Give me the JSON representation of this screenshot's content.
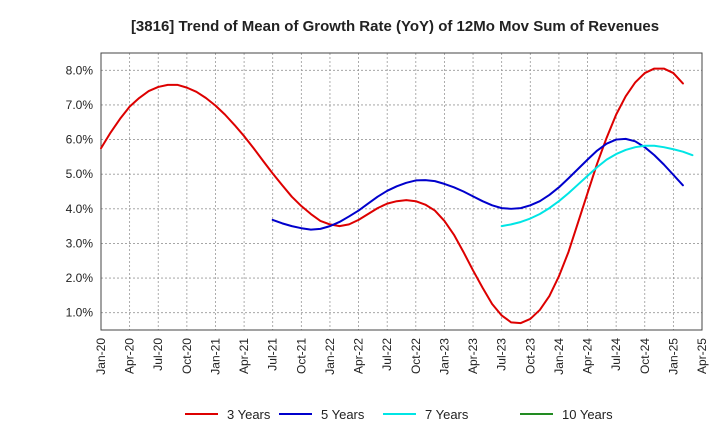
{
  "chart_data": {
    "type": "line",
    "title": "[3816]  Trend of Mean of Growth Rate (YoY) of 12Mo Mov Sum of Revenues",
    "xlabel": "",
    "ylabel": "",
    "x_range": [
      "Jan-20",
      "Apr-25"
    ],
    "ylim": [
      0.5,
      8.5
    ],
    "yticks": [
      1.0,
      2.0,
      3.0,
      4.0,
      5.0,
      6.0,
      7.0,
      8.0
    ],
    "ytick_labels": [
      "1.0%",
      "2.0%",
      "3.0%",
      "4.0%",
      "5.0%",
      "6.0%",
      "7.0%",
      "8.0%"
    ],
    "xtick_labels": [
      "Jan-20",
      "Apr-20",
      "Jul-20",
      "Oct-20",
      "Jan-21",
      "Apr-21",
      "Jul-21",
      "Oct-21",
      "Jan-22",
      "Apr-22",
      "Jul-22",
      "Oct-22",
      "Jan-23",
      "Apr-23",
      "Jul-23",
      "Oct-23",
      "Jan-24",
      "Apr-24",
      "Jul-24",
      "Oct-24",
      "Jan-25",
      "Apr-25"
    ],
    "grid": true,
    "legend_position": "bottom",
    "series": [
      {
        "name": "3 Years",
        "color": "#dd0000",
        "start": "Jan-20",
        "values": [
          5.75,
          6.2,
          6.6,
          6.95,
          7.2,
          7.4,
          7.52,
          7.58,
          7.58,
          7.5,
          7.38,
          7.2,
          6.98,
          6.72,
          6.42,
          6.1,
          5.75,
          5.38,
          5.02,
          4.68,
          4.35,
          4.08,
          3.85,
          3.65,
          3.55,
          3.5,
          3.55,
          3.68,
          3.85,
          4.02,
          4.15,
          4.22,
          4.25,
          4.22,
          4.12,
          3.95,
          3.65,
          3.25,
          2.75,
          2.22,
          1.72,
          1.25,
          0.92,
          0.72,
          0.7,
          0.82,
          1.08,
          1.48,
          2.05,
          2.75,
          3.6,
          4.45,
          5.3,
          6.05,
          6.72,
          7.25,
          7.65,
          7.92,
          8.05,
          8.05,
          7.92,
          7.62
        ]
      },
      {
        "name": "5 Years",
        "color": "#0000cc",
        "start": "Jul-21",
        "values": [
          3.68,
          3.58,
          3.5,
          3.44,
          3.4,
          3.42,
          3.5,
          3.62,
          3.78,
          3.95,
          4.15,
          4.35,
          4.52,
          4.65,
          4.75,
          4.82,
          4.83,
          4.8,
          4.72,
          4.62,
          4.5,
          4.36,
          4.22,
          4.1,
          4.02,
          4.0,
          4.02,
          4.1,
          4.22,
          4.4,
          4.62,
          4.88,
          5.15,
          5.42,
          5.68,
          5.88,
          6.0,
          6.02,
          5.95,
          5.78,
          5.55,
          5.28,
          4.98,
          4.68
        ]
      },
      {
        "name": "7 Years",
        "color": "#00e5e5",
        "start": "Jul-23",
        "values": [
          3.5,
          3.55,
          3.62,
          3.72,
          3.85,
          4.02,
          4.22,
          4.45,
          4.7,
          4.95,
          5.2,
          5.42,
          5.58,
          5.7,
          5.78,
          5.82,
          5.82,
          5.78,
          5.72,
          5.65,
          5.55
        ]
      },
      {
        "name": "10 Years",
        "color": "#228b22",
        "start": "Jan-25",
        "values": []
      }
    ]
  }
}
